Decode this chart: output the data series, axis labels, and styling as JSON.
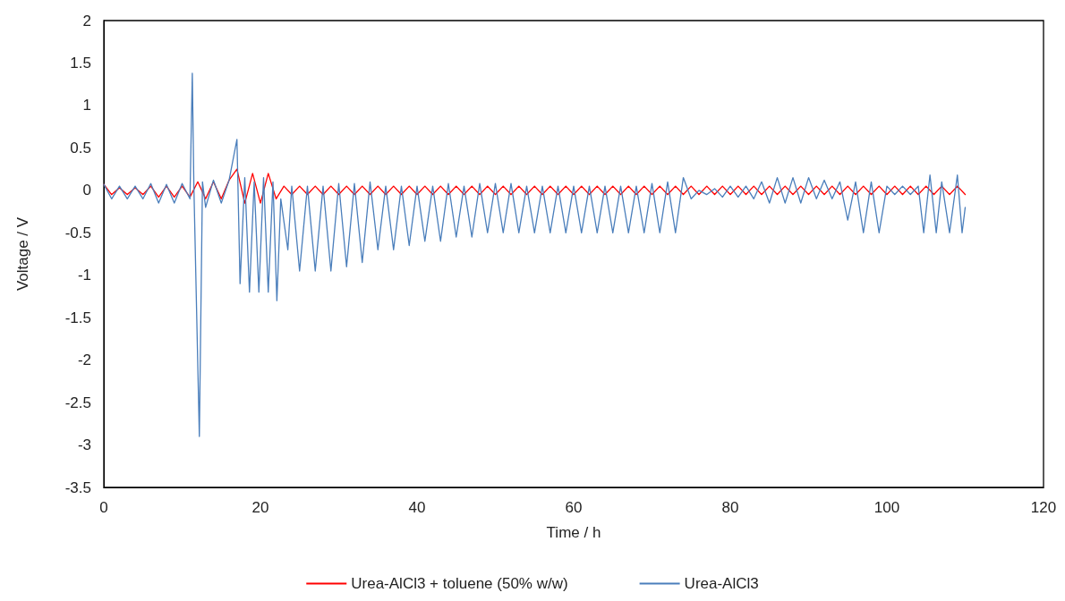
{
  "chart_data": {
    "type": "line",
    "xlabel": "Time / h",
    "ylabel": "Voltage / V",
    "xlim": [
      0,
      120
    ],
    "xticks": [
      0,
      20,
      40,
      60,
      80,
      100,
      120
    ],
    "ylim": [
      -3.5,
      2
    ],
    "yticks": [
      -3.5,
      -3,
      -2.5,
      -2,
      -1.5,
      -1,
      -0.5,
      0,
      0.5,
      1,
      1.5,
      2
    ],
    "grid": false,
    "legend": "bottom",
    "marker": "none",
    "line_style": "solid",
    "series": [
      {
        "name": "Urea-AlCl3 + toluene (50% w/w)",
        "color": "#ff0000",
        "x": [
          0,
          1,
          2,
          3,
          4,
          5,
          6,
          7,
          8,
          9,
          10,
          11,
          12,
          13,
          14,
          15,
          16,
          17,
          18,
          19,
          20,
          21,
          22,
          23,
          24,
          25,
          26,
          27,
          28,
          29,
          30,
          31,
          32,
          33,
          34,
          35,
          36,
          37,
          38,
          39,
          40,
          41,
          42,
          43,
          44,
          45,
          46,
          47,
          48,
          49,
          50,
          51,
          52,
          53,
          54,
          55,
          56,
          57,
          58,
          59,
          60,
          61,
          62,
          63,
          64,
          65,
          66,
          67,
          68,
          69,
          70,
          71,
          72,
          73,
          74,
          75,
          76,
          77,
          78,
          79,
          80,
          81,
          82,
          83,
          84,
          85,
          86,
          87,
          88,
          89,
          90,
          91,
          92,
          93,
          94,
          95,
          96,
          97,
          98,
          99,
          100,
          101,
          102,
          103,
          104,
          105,
          106,
          107,
          108,
          109,
          110
        ],
        "values": [
          0.07,
          -0.05,
          0.03,
          -0.05,
          0.03,
          -0.05,
          0.05,
          -0.08,
          0.05,
          -0.08,
          0.05,
          -0.08,
          0.1,
          -0.1,
          0.1,
          -0.1,
          0.12,
          0.25,
          -0.15,
          0.2,
          -0.15,
          0.2,
          -0.1,
          0.05,
          -0.05,
          0.05,
          -0.05,
          0.05,
          -0.05,
          0.05,
          -0.05,
          0.05,
          -0.05,
          0.05,
          -0.05,
          0.05,
          -0.05,
          0.05,
          -0.05,
          0.05,
          -0.05,
          0.05,
          -0.05,
          0.05,
          -0.05,
          0.05,
          -0.05,
          0.05,
          -0.05,
          0.05,
          -0.05,
          0.05,
          -0.05,
          0.05,
          -0.05,
          0.05,
          -0.05,
          0.05,
          -0.05,
          0.05,
          -0.05,
          0.05,
          -0.05,
          0.05,
          -0.05,
          0.05,
          -0.05,
          0.05,
          -0.05,
          0.05,
          -0.05,
          0.05,
          -0.05,
          0.05,
          -0.05,
          0.05,
          -0.05,
          0.05,
          -0.05,
          0.05,
          -0.05,
          0.05,
          -0.05,
          0.05,
          -0.05,
          0.05,
          -0.05,
          0.05,
          -0.05,
          0.05,
          -0.05,
          0.05,
          -0.05,
          0.05,
          -0.05,
          0.05,
          -0.05,
          0.05,
          -0.05,
          0.05,
          -0.05,
          0.05,
          -0.05,
          0.05,
          -0.05,
          0.05,
          -0.05,
          0.05,
          -0.05,
          0.05,
          -0.05
        ]
      },
      {
        "name": "Urea-AlCl3",
        "color": "#4a7ebb",
        "x": [
          0,
          1,
          2,
          3,
          4,
          5,
          6,
          7,
          8,
          9,
          10,
          11,
          11.3,
          11.5,
          12.2,
          12.6,
          13,
          14,
          15,
          16,
          17,
          17.4,
          18,
          18.6,
          19.2,
          19.8,
          20.4,
          21,
          21.6,
          22.1,
          22.6,
          23.5,
          24,
          25,
          26,
          27,
          28,
          29,
          30,
          31,
          32,
          33,
          34,
          35,
          36,
          37,
          38,
          39,
          40,
          41,
          42,
          43,
          44,
          45,
          46,
          47,
          48,
          49,
          50,
          51,
          52,
          53,
          54,
          55,
          56,
          57,
          58,
          59,
          60,
          61,
          62,
          63,
          64,
          65,
          66,
          67,
          68,
          69,
          70,
          71,
          72,
          73,
          74,
          75,
          76,
          77,
          78,
          79,
          80,
          81,
          82,
          83,
          84,
          85,
          86,
          87,
          88,
          89,
          90,
          91,
          92,
          93,
          94,
          95,
          96,
          97,
          98,
          99,
          100,
          101,
          102,
          103,
          104,
          104.7,
          105.5,
          106.3,
          107,
          108,
          109,
          109.6,
          110
        ],
        "values": [
          0.07,
          -0.1,
          0.05,
          -0.1,
          0.05,
          -0.1,
          0.08,
          -0.15,
          0.07,
          -0.15,
          0.08,
          -0.1,
          1.38,
          0.05,
          -2.9,
          0.1,
          -0.2,
          0.12,
          -0.15,
          0.12,
          0.6,
          -1.1,
          0.15,
          -1.2,
          0.1,
          -1.2,
          0.15,
          -1.2,
          0.1,
          -1.3,
          -0.1,
          -0.7,
          0.05,
          -0.95,
          0.05,
          -0.95,
          0.05,
          -0.95,
          0.08,
          -0.9,
          0.08,
          -0.85,
          0.1,
          -0.7,
          0.05,
          -0.7,
          0.05,
          -0.65,
          0.05,
          -0.6,
          0.05,
          -0.6,
          0.08,
          -0.55,
          0.05,
          -0.55,
          0.08,
          -0.5,
          0.08,
          -0.5,
          0.08,
          -0.5,
          0.05,
          -0.5,
          0.05,
          -0.5,
          0.05,
          -0.5,
          0.05,
          -0.5,
          0.05,
          -0.5,
          0.05,
          -0.5,
          0.05,
          -0.5,
          0.05,
          -0.5,
          0.08,
          -0.5,
          0.1,
          -0.5,
          0.15,
          -0.1,
          0,
          -0.05,
          0.02,
          -0.08,
          0.05,
          -0.08,
          0.05,
          -0.1,
          0.1,
          -0.15,
          0.15,
          -0.15,
          0.15,
          -0.15,
          0.15,
          -0.1,
          0.12,
          -0.1,
          0.1,
          -0.35,
          0.1,
          -0.5,
          0.1,
          -0.5,
          0.05,
          -0.05,
          0.05,
          -0.05,
          0.05,
          -0.5,
          0.18,
          -0.5,
          0.1,
          -0.5,
          0.18,
          -0.5,
          -0.2
        ]
      }
    ]
  }
}
